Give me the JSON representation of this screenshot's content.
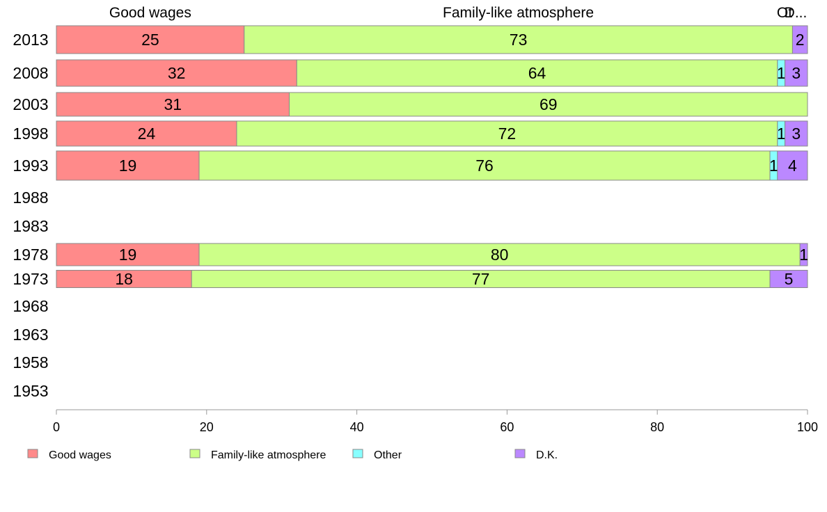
{
  "chart_data": {
    "type": "bar",
    "orientation": "horizontal",
    "stacked": true,
    "title": "",
    "xlabel": "",
    "ylabel": "",
    "xlim": [
      0,
      100
    ],
    "x_ticks": [
      0,
      20,
      40,
      60,
      80,
      100
    ],
    "categories": [
      "2013",
      "2008",
      "2003",
      "1998",
      "1993",
      "1988",
      "1983",
      "1978",
      "1973",
      "1968",
      "1963",
      "1958",
      "1953"
    ],
    "series": [
      {
        "name": "Good wages",
        "color": "#ff8a8a",
        "values": [
          25,
          32,
          31,
          24,
          19,
          null,
          null,
          19,
          18,
          null,
          null,
          null,
          null
        ]
      },
      {
        "name": "Family-like atmosphere",
        "color": "#ccff88",
        "values": [
          73,
          64,
          69,
          72,
          76,
          null,
          null,
          80,
          77,
          null,
          null,
          null,
          null
        ]
      },
      {
        "name": "Other",
        "color": "#88ffff",
        "values": [
          0,
          1,
          0,
          1,
          1,
          null,
          null,
          0,
          0,
          null,
          null,
          null,
          null
        ]
      },
      {
        "name": "D.K.",
        "color": "#bb88ff",
        "values": [
          2,
          3,
          0,
          3,
          4,
          null,
          null,
          1,
          5,
          null,
          null,
          null,
          null
        ]
      }
    ],
    "top_labels": [
      "Good wages",
      "Family-like atmosphere",
      "Ot",
      "D..."
    ],
    "legend": {
      "position": "bottom",
      "entries": [
        "Good wages",
        "Family-like atmosphere",
        "Other",
        "D.K."
      ]
    },
    "grid": false
  }
}
